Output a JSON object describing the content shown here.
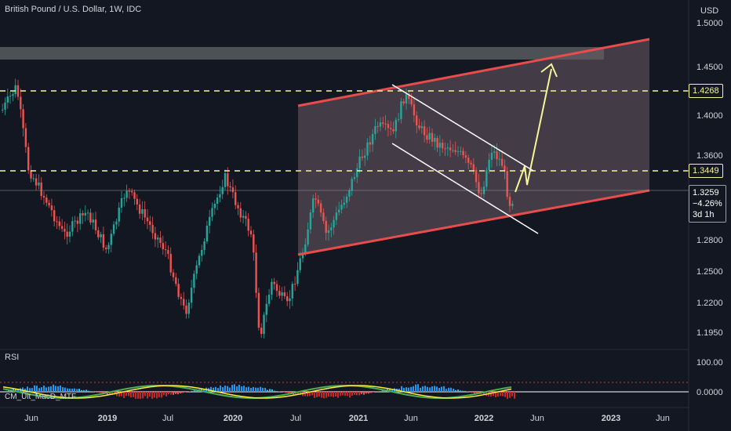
{
  "chart": {
    "title": "British Pound / U.S. Dollar, 1W, IDC",
    "currency": "USD",
    "y_ticks": [
      "1.5000",
      "1.4500",
      "1.4000",
      "1.3600",
      "1.2800",
      "1.2500",
      "1.2200",
      "1.1950"
    ],
    "x_ticks": [
      "Jun",
      "2019",
      "Jul",
      "2020",
      "Jul",
      "2021",
      "Jun",
      "2022",
      "Jun",
      "2023",
      "Jun"
    ],
    "level_top": "1.4268",
    "level_mid": "1.3449",
    "price_last": "1.3259",
    "price_change": "−4.26%",
    "countdown": "3d 1h",
    "rsi_label": "RSI",
    "rsi_tick": "100.00",
    "macd_label": "CM_Ult_MacD_MTF",
    "macd_tick": "0.0000"
  },
  "colors": {
    "background": "#131722",
    "up": "#26a69a",
    "down": "#ef5350",
    "channel": "#e84c4c",
    "level": "#f5f59a",
    "arrow": "#f5f59a",
    "channel_fill": "#6b5a63"
  },
  "chart_data": {
    "type": "candlestick",
    "symbol": "GBP/USD",
    "timeframe": "1W",
    "y_range": [
      1.18,
      1.51
    ],
    "horizontal_levels": [
      1.4268,
      1.3449
    ],
    "last_price": 1.3259,
    "change_pct": -4.26
  }
}
